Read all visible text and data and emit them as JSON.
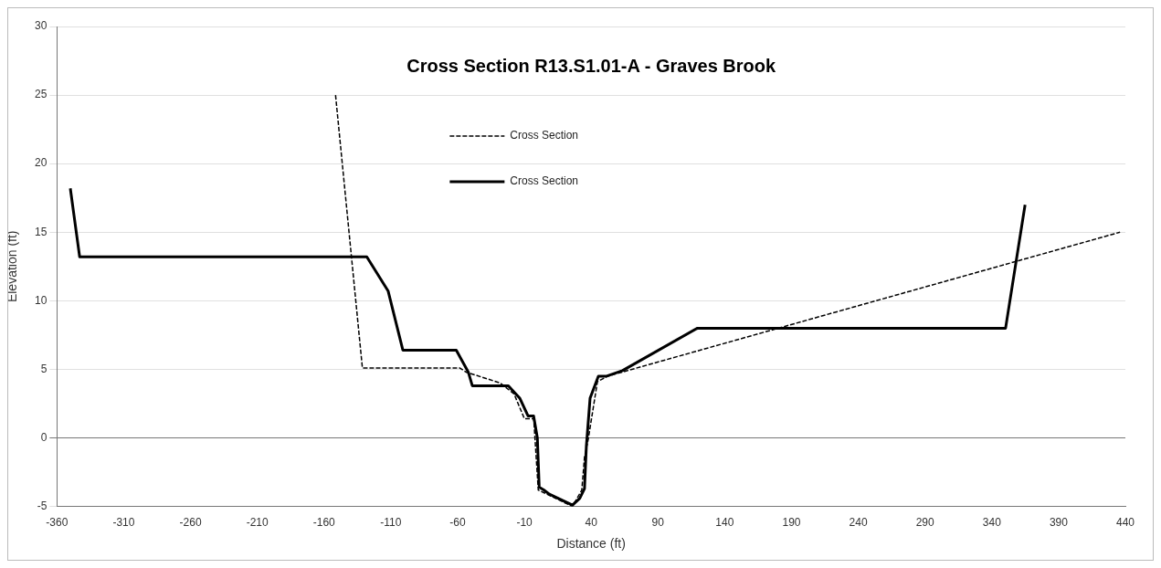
{
  "chart_data": {
    "type": "line",
    "title": "Cross Section R13.S1.01-A - Graves Brook",
    "xlabel": "Distance (ft)",
    "ylabel": "Elevation (ft)",
    "series": [
      {
        "name": "Cross Section",
        "color": "#000000",
        "line_style": "dashed",
        "x": [
          -151.4,
          -131.3,
          -58.5,
          -53.7,
          -28,
          -17.7,
          -10,
          -3,
          0.4,
          26,
          33,
          35,
          37.8,
          44.7,
          52.3,
          436
        ],
        "values": [
          25.0,
          5.1,
          5.1,
          4.8,
          4.0,
          3.2,
          1.4,
          1.4,
          -3.8,
          -5.0,
          -3.8,
          -1.4,
          -0.1,
          4.1,
          4.5,
          15.0
        ]
      },
      {
        "name": "Cross Section",
        "color": "#000000",
        "line_style": "solid",
        "x": [
          -350,
          -343,
          -128,
          -112,
          -101,
          -61,
          -52,
          -49,
          -22,
          -13.5,
          -7.3,
          -3.1,
          -0.3,
          1.1,
          4.5,
          8.7,
          26,
          31.5,
          35,
          36.4,
          39.2,
          45.4,
          51.6,
          63.4,
          119.6,
          350.3,
          364.9
        ],
        "values": [
          18.2,
          13.2,
          13.2,
          10.7,
          6.4,
          6.4,
          4.8,
          3.8,
          3.8,
          2.9,
          1.6,
          1.6,
          0,
          -3.6,
          -3.8,
          -4.1,
          -4.9,
          -4.4,
          -3.7,
          -0.6,
          2.9,
          4.5,
          4.5,
          4.9,
          8.0,
          8.0,
          17.0
        ]
      }
    ],
    "xlim": [
      -360,
      440
    ],
    "xticks": [
      -360,
      -310,
      -260,
      -210,
      -160,
      -110,
      -60,
      -10,
      40,
      90,
      140,
      190,
      240,
      290,
      340,
      390,
      440
    ],
    "ylim": [
      -5,
      30
    ],
    "yticks": [
      -5,
      0,
      5,
      10,
      15,
      20,
      25,
      30
    ],
    "grid": "y",
    "legend": "top",
    "marker": "none"
  }
}
